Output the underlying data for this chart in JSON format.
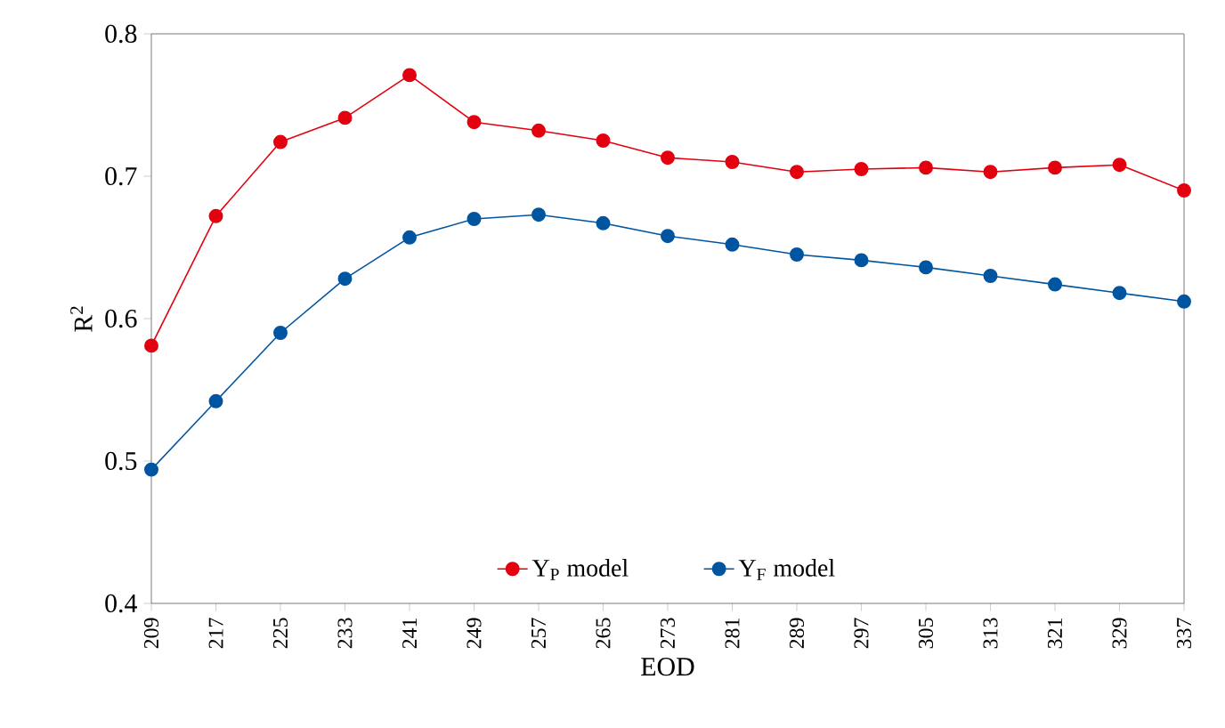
{
  "chart_data": {
    "type": "line",
    "xlabel": "EOD",
    "ylabel": "R$^{2}$",
    "x": [
      209,
      217,
      225,
      233,
      241,
      249,
      257,
      265,
      273,
      281,
      289,
      297,
      305,
      313,
      321,
      329,
      337
    ],
    "xlim": [
      209,
      337
    ],
    "xticks": [
      209,
      217,
      225,
      233,
      241,
      249,
      257,
      265,
      273,
      281,
      289,
      297,
      305,
      313,
      321,
      329,
      337
    ],
    "ylim": [
      0.4,
      0.8
    ],
    "yticks": [
      0.4,
      0.5,
      0.6,
      0.7,
      0.8
    ],
    "series": [
      {
        "name": "Y$_{P}$ model",
        "color": "#e3000f",
        "values": [
          0.581,
          0.672,
          0.724,
          0.741,
          0.771,
          0.738,
          0.732,
          0.725,
          0.713,
          0.71,
          0.703,
          0.705,
          0.706,
          0.703,
          0.706,
          0.708,
          0.69
        ]
      },
      {
        "name": "Y$_{F}$ model",
        "color": "#0055a0",
        "values": [
          0.494,
          0.542,
          0.59,
          0.628,
          0.657,
          0.67,
          0.673,
          0.667,
          0.658,
          0.652,
          0.645,
          0.641,
          0.636,
          0.63,
          0.624,
          0.618,
          0.612
        ]
      }
    ],
    "marker": "circle",
    "line_style": "solid",
    "grid": false,
    "legend": "bottom"
  }
}
